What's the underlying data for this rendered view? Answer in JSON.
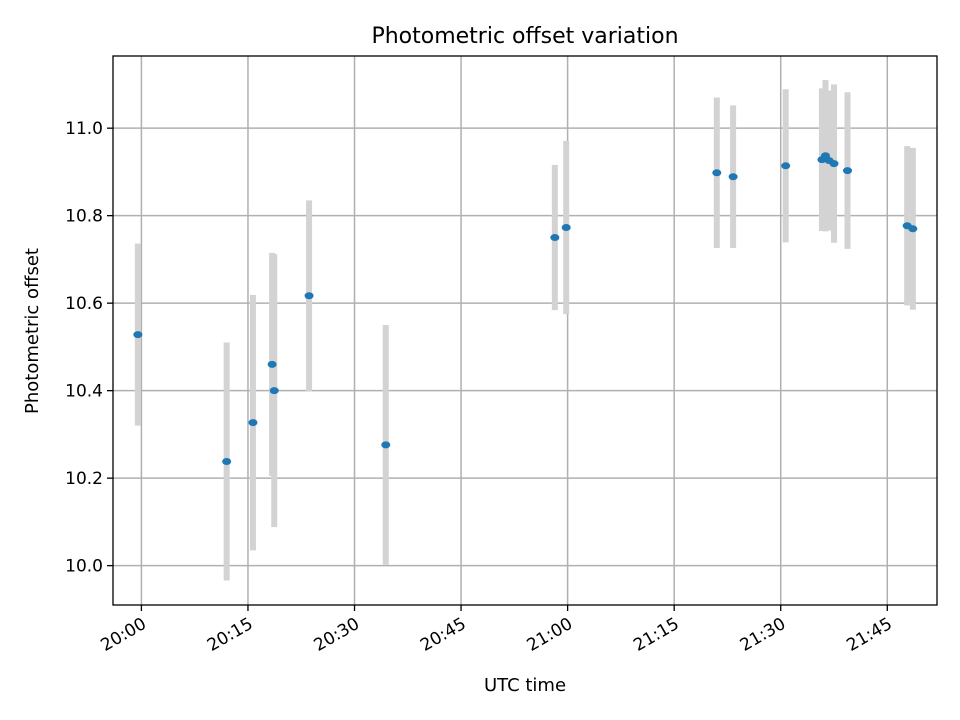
{
  "chart_data": {
    "type": "scatter",
    "title": "Photometric offset variation",
    "xlabel": "UTC time",
    "ylabel": "Photometric offset",
    "x_axis_type": "time",
    "xlim": [
      "19:56",
      "21:52"
    ],
    "ylim": [
      9.91,
      11.165
    ],
    "xticks": [
      "20:00",
      "20:15",
      "20:30",
      "20:45",
      "21:00",
      "21:15",
      "21:30",
      "21:45"
    ],
    "yticks": [
      10.0,
      10.2,
      10.4,
      10.6,
      10.8,
      11.0
    ],
    "grid": true,
    "colors": {
      "points": "#1f77b4",
      "errorbars": "#d3d3d3"
    },
    "points": [
      {
        "x": "19:59.5",
        "y": 10.528,
        "yerr": 0.208
      },
      {
        "x": "20:12.0",
        "y": 10.238,
        "yerr": 0.272
      },
      {
        "x": "20:15.7",
        "y": 10.327,
        "yerr": 0.292
      },
      {
        "x": "20:18.4",
        "y": 10.46,
        "yerr": 0.255
      },
      {
        "x": "20:18.7",
        "y": 10.4,
        "yerr": 0.312
      },
      {
        "x": "20:23.6",
        "y": 10.617,
        "yerr": 0.218
      },
      {
        "x": "20:34.4",
        "y": 10.276,
        "yerr": 0.274
      },
      {
        "x": "20:58.2",
        "y": 10.75,
        "yerr": 0.166
      },
      {
        "x": "20:59.8",
        "y": 10.773,
        "yerr": 0.198
      },
      {
        "x": "21:21.0",
        "y": 10.898,
        "yerr": 0.172
      },
      {
        "x": "21:23.3",
        "y": 10.889,
        "yerr": 0.163
      },
      {
        "x": "21:30.7",
        "y": 10.914,
        "yerr": 0.175
      },
      {
        "x": "21:35.8",
        "y": 10.928,
        "yerr": 0.163
      },
      {
        "x": "21:36.3",
        "y": 10.937,
        "yerr": 0.173
      },
      {
        "x": "21:36.8",
        "y": 10.926,
        "yerr": 0.16
      },
      {
        "x": "21:37.5",
        "y": 10.919,
        "yerr": 0.181
      },
      {
        "x": "21:39.4",
        "y": 10.903,
        "yerr": 0.179
      },
      {
        "x": "21:47.8",
        "y": 10.777,
        "yerr": 0.182
      },
      {
        "x": "21:48.6",
        "y": 10.77,
        "yerr": 0.185
      }
    ]
  }
}
